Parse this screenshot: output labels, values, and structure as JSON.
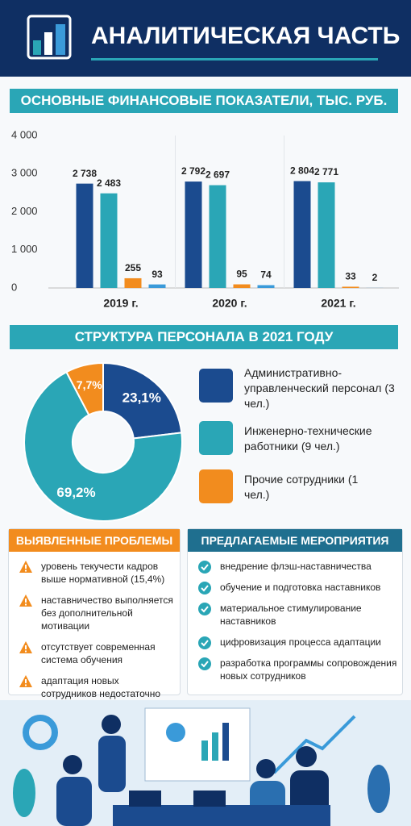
{
  "header": {
    "title": "АНАЛИТИЧЕСКАЯ ЧАСТЬ"
  },
  "chart_data": [
    {
      "type": "bar",
      "title": "ОСНОВНЫЕ ФИНАНСОВЫЕ ПОКАЗАТЕЛИ, ТЫС. РУБ.",
      "categories": [
        "2019 г.",
        "2020 г.",
        "2021 г."
      ],
      "series": [
        {
          "color": "#1b4b8f",
          "values": [
            2738,
            2792,
            2804
          ],
          "value_labels": [
            "2 738",
            "2 792",
            "2 804"
          ]
        },
        {
          "color": "#2aa6b6",
          "values": [
            2483,
            2697,
            2771
          ],
          "value_labels": [
            "2 483",
            "2 697",
            "2 771"
          ]
        },
        {
          "color": "#f28c1e",
          "values": [
            255,
            95,
            33
          ]
        },
        {
          "color": "#3a9ad9",
          "values": [
            93,
            74,
            2
          ]
        }
      ],
      "ylim": [
        0,
        4000
      ],
      "yticks": [
        0,
        {
          "value": 1000,
          "label": "1 000"
        },
        {
          "value": 2000,
          "label": "2 000"
        },
        {
          "value": 3000,
          "label": "3 000"
        },
        {
          "value": 4000,
          "label": "4 000"
        }
      ],
      "grid": false
    },
    {
      "type": "pie",
      "title": "СТРУКТУРА ПЕРСОНАЛА В 2021 ГОДУ",
      "donut": true,
      "categories": [
        "Административно-управленческий персонал",
        "Инженерно-технические работники",
        "Прочие сотрудники"
      ],
      "notes": [
        "(3 чел.)",
        "(9 чел.)",
        "(1 чел.)"
      ],
      "values": [
        23.1,
        69.2,
        7.7
      ],
      "value_labels": [
        "23,1%",
        "69,2%",
        "7,7%"
      ],
      "colors": [
        "#1b4b8f",
        "#2aa6b6",
        "#f28c1e"
      ]
    }
  ],
  "problems": {
    "title": "ВЫЯВЛЕННЫЕ ПРОБЛЕМЫ",
    "items": [
      "уровень текучести кадров выше нормативной (15,4%)",
      "наставничество выполняется без дополнительной мотивации",
      "отсутствует современная система обучения",
      "адаптация новых сотрудников недостаточно структурирована"
    ]
  },
  "measures": {
    "title": "ПРЕДЛАГАЕМЫЕ МЕРОПРИЯТИЯ",
    "items": [
      "внедрение флэш-наставничества",
      "обучение и подготовка наставников",
      "материальное стимулирование наставников",
      "цифровизация процесса адаптации",
      "разработка программы сопровождения новых сотрудников"
    ]
  }
}
